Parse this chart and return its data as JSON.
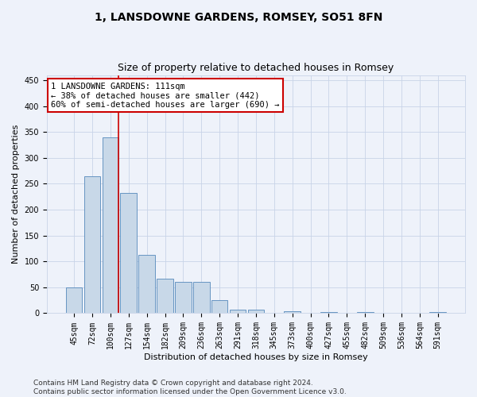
{
  "title": "1, LANSDOWNE GARDENS, ROMSEY, SO51 8FN",
  "subtitle": "Size of property relative to detached houses in Romsey",
  "xlabel": "Distribution of detached houses by size in Romsey",
  "ylabel": "Number of detached properties",
  "categories": [
    "45sqm",
    "72sqm",
    "100sqm",
    "127sqm",
    "154sqm",
    "182sqm",
    "209sqm",
    "236sqm",
    "263sqm",
    "291sqm",
    "318sqm",
    "345sqm",
    "373sqm",
    "400sqm",
    "427sqm",
    "455sqm",
    "482sqm",
    "509sqm",
    "536sqm",
    "564sqm",
    "591sqm"
  ],
  "values": [
    50,
    265,
    340,
    232,
    113,
    67,
    61,
    61,
    25,
    7,
    7,
    0,
    4,
    0,
    3,
    0,
    2,
    0,
    0,
    0,
    3
  ],
  "bar_color": "#c8d8e8",
  "bar_edge_color": "#5588bb",
  "grid_color": "#c8d4e8",
  "background_color": "#eef2fa",
  "property_sqm": 111,
  "annotation_line1": "1 LANSDOWNE GARDENS: 111sqm",
  "annotation_line2": "← 38% of detached houses are smaller (442)",
  "annotation_line3": "60% of semi-detached houses are larger (690) →",
  "annotation_box_color": "#cc0000",
  "ylim": [
    0,
    460
  ],
  "yticks": [
    0,
    50,
    100,
    150,
    200,
    250,
    300,
    350,
    400,
    450
  ],
  "footer_line1": "Contains HM Land Registry data © Crown copyright and database right 2024.",
  "footer_line2": "Contains public sector information licensed under the Open Government Licence v3.0.",
  "title_fontsize": 10,
  "subtitle_fontsize": 9,
  "axis_label_fontsize": 8,
  "tick_fontsize": 7,
  "annotation_fontsize": 7.5,
  "footer_fontsize": 6.5
}
